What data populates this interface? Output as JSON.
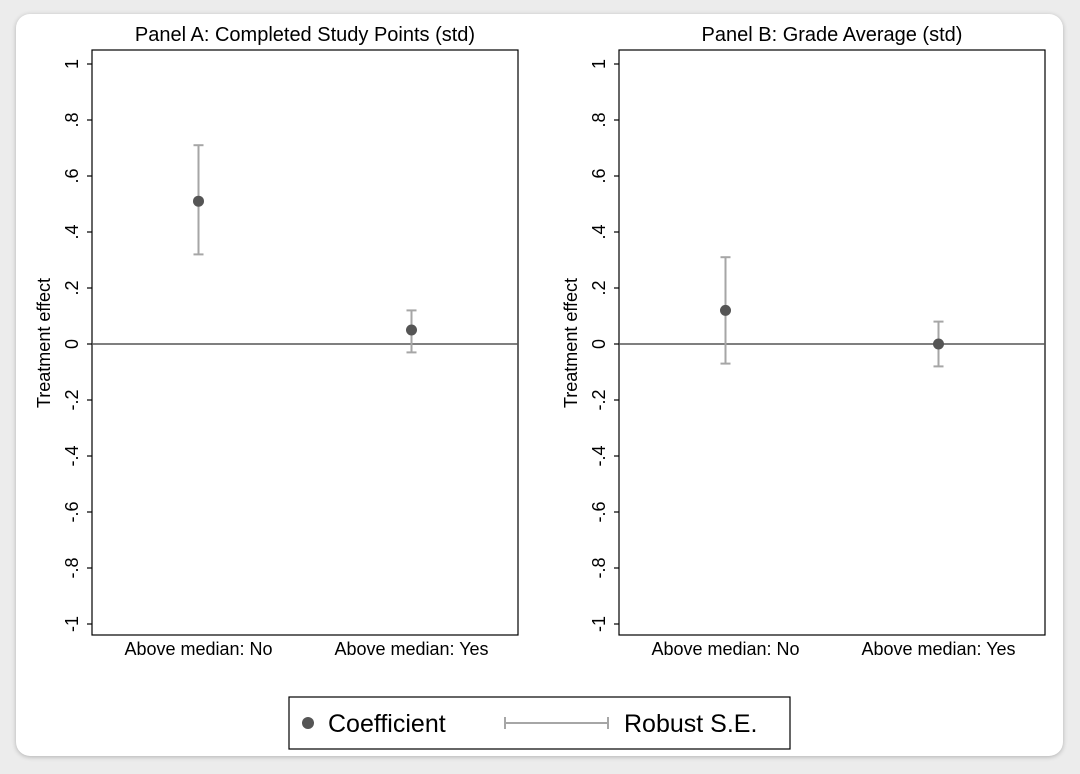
{
  "chart_data": [
    {
      "type": "scatter",
      "title": "Panel A: Completed Study Points (std)",
      "ylabel": "Treatment effect",
      "xlabel": "",
      "categories": [
        "Above median: No",
        "Above median: Yes"
      ],
      "coefficients": [
        0.51,
        0.05
      ],
      "ci_low": [
        0.32,
        -0.03
      ],
      "ci_high": [
        0.71,
        0.12
      ],
      "ylim": [
        -1,
        1
      ],
      "yticks": [
        1,
        0.8,
        0.6,
        0.4,
        0.2,
        0,
        -0.2,
        -0.4,
        -0.6,
        -0.8,
        -1
      ],
      "ytick_labels": [
        "1",
        ".8",
        ".6",
        ".4",
        ".2",
        "0",
        "-.2",
        "-.4",
        "-.6",
        "-.8",
        "-1"
      ],
      "reference_line": 0,
      "grid": false
    },
    {
      "type": "scatter",
      "title": "Panel B: Grade Average (std)",
      "ylabel": "Treatment effect",
      "xlabel": "",
      "categories": [
        "Above median: No",
        "Above median: Yes"
      ],
      "coefficients": [
        0.12,
        0.0
      ],
      "ci_low": [
        -0.07,
        -0.08
      ],
      "ci_high": [
        0.31,
        0.08
      ],
      "ylim": [
        -1,
        1
      ],
      "yticks": [
        1,
        0.8,
        0.6,
        0.4,
        0.2,
        0,
        -0.2,
        -0.4,
        -0.6,
        -0.8,
        -1
      ],
      "ytick_labels": [
        "1",
        ".8",
        ".6",
        ".4",
        ".2",
        "0",
        "-.2",
        "-.4",
        "-.6",
        "-.8",
        "-1"
      ],
      "reference_line": 0,
      "grid": false
    }
  ],
  "legend": {
    "placement": "bottom",
    "items": [
      {
        "label": "Coefficient",
        "marker": "dot"
      },
      {
        "label": "Robust S.E.",
        "marker": "capped-bar"
      }
    ]
  },
  "colors": {
    "point": "#555555",
    "errorbar": "#a6a6a6",
    "zero_line": "#555555",
    "axis": "#000000"
  }
}
